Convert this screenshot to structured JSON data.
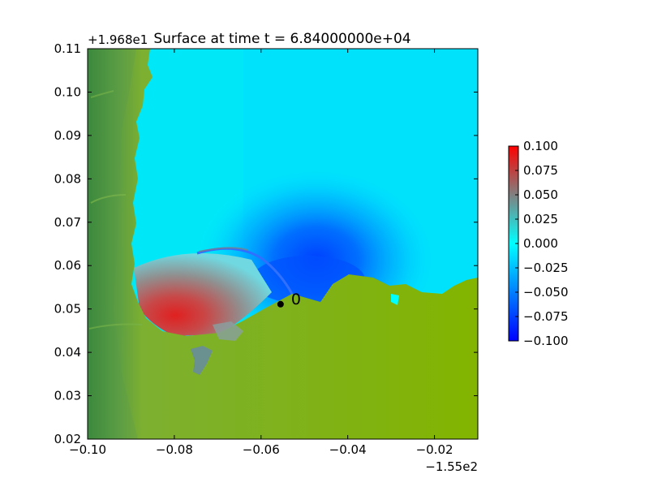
{
  "chart_data": {
    "type": "heatmap",
    "title": "Surface at time t = 6.84000000e+04",
    "xlabel": "",
    "ylabel": "",
    "x_offset_label": "−1.55e2",
    "y_offset_label": "+1.968e1",
    "xlim": [
      -0.1,
      -0.01
    ],
    "ylim": [
      0.02,
      0.11
    ],
    "x_ticks": [
      -0.1,
      -0.08,
      -0.06,
      -0.04,
      -0.02
    ],
    "x_tick_labels": [
      "−0.10",
      "−0.08",
      "−0.06",
      "−0.04",
      "−0.02"
    ],
    "y_ticks": [
      0.02,
      0.03,
      0.04,
      0.05,
      0.06,
      0.07,
      0.08,
      0.09,
      0.1,
      0.11
    ],
    "y_tick_labels": [
      "0.02",
      "0.03",
      "0.04",
      "0.05",
      "0.06",
      "0.07",
      "0.08",
      "0.09",
      "0.10",
      "0.11"
    ],
    "colorbar": {
      "range": [
        -0.1,
        0.1
      ],
      "ticks": [
        0.1,
        0.075,
        0.05,
        0.025,
        0.0,
        -0.025,
        -0.05,
        -0.075,
        -0.1
      ],
      "tick_labels": [
        "0.100",
        "0.075",
        "0.050",
        "0.025",
        "0.000",
        "−0.025",
        "−0.050",
        "−0.075",
        "−0.100"
      ],
      "colors": [
        "#0000ff",
        "#00ffff",
        "#808080",
        "#ff0000"
      ]
    },
    "gauge": {
      "label": "0",
      "x": -0.0555,
      "y": 0.0511,
      "color": "#000000"
    },
    "land_colors": {
      "dark": "#3a8a3a",
      "mid": "#62a040",
      "light": "#84b800"
    },
    "grid": false
  }
}
